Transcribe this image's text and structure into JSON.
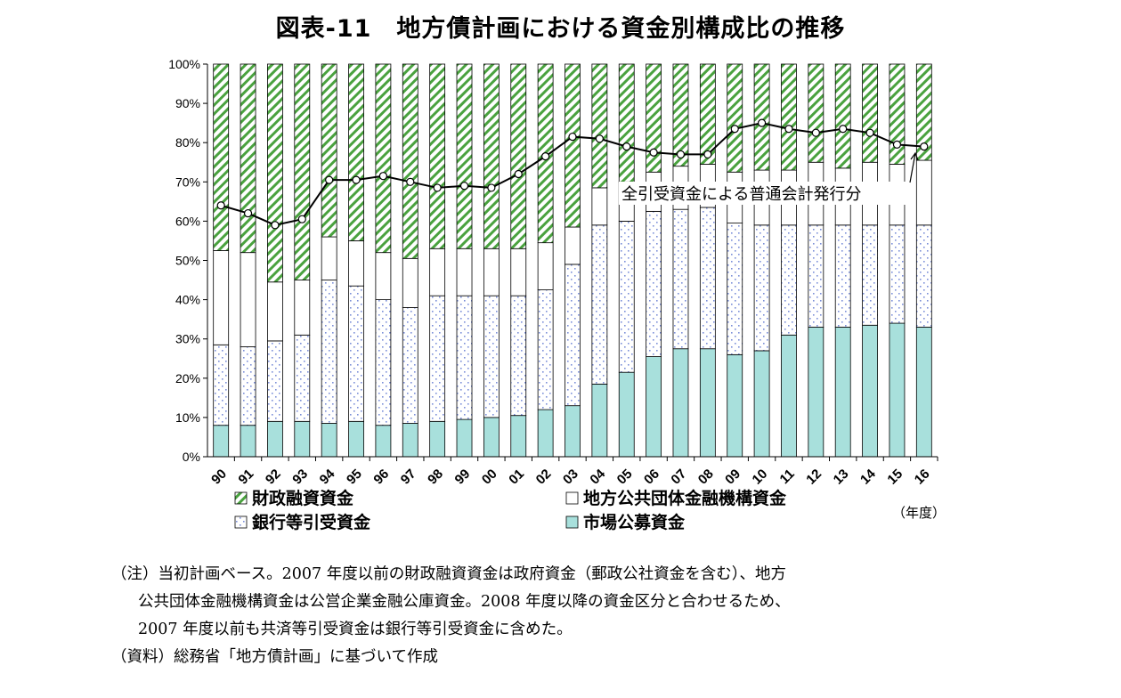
{
  "title": "図表-11　地方債計画における資金別構成比の推移",
  "colors": {
    "market": "#a8e0dc",
    "bank_dots": "#7c8fd8",
    "fiscal_stripe": "#4aa23f",
    "line": "#000000"
  },
  "unit_label": "（年度）",
  "line_annotation": "全引受資金による普通会計発行分",
  "notes": [
    "（注）当初計画ベース。2007 年度以前の財政融資資金は政府資金（郵政公社資金を含む）、地方",
    "公共団体金融機構資金は公営企業金融公庫資金。2008 年度以降の資金区分と合わせるため、",
    "2007 年度以前も共済等引受資金は銀行等引受資金に含めた。",
    "（資料）総務省「地方債計画」に基づいて作成"
  ],
  "chart_data": {
    "type": "bar",
    "stacked": true,
    "categories": [
      "90",
      "91",
      "92",
      "93",
      "94",
      "95",
      "96",
      "97",
      "98",
      "99",
      "00",
      "01",
      "02",
      "03",
      "04",
      "05",
      "06",
      "07",
      "08",
      "09",
      "10",
      "11",
      "12",
      "13",
      "14",
      "15",
      "16"
    ],
    "ylim": [
      0,
      100
    ],
    "yticks": [
      "0%",
      "10%",
      "20%",
      "30%",
      "40%",
      "50%",
      "60%",
      "70%",
      "80%",
      "90%",
      "100%"
    ],
    "series": [
      {
        "name": "市場公募資金",
        "values": [
          8,
          8,
          9,
          9,
          8.5,
          9,
          8,
          8.5,
          9,
          9.5,
          10,
          10.5,
          12,
          13,
          18.5,
          21.5,
          25.5,
          27.5,
          27.5,
          26,
          27,
          31,
          33,
          33,
          33.5,
          34,
          33
        ]
      },
      {
        "name": "銀行等引受資金",
        "values": [
          20.5,
          20,
          20.5,
          22,
          36.5,
          34.5,
          32,
          29.5,
          32,
          31.5,
          31,
          30.5,
          30.5,
          36,
          40.5,
          38.5,
          37,
          35.5,
          36,
          33.5,
          32,
          28,
          26,
          26,
          25.5,
          25,
          26
        ]
      },
      {
        "name": "地方公共団体金融機構資金",
        "values": [
          24,
          24,
          15,
          14,
          11,
          11.5,
          12,
          12.5,
          12,
          12,
          12,
          12,
          12,
          9.5,
          9.5,
          10,
          10,
          11,
          11,
          13,
          14,
          14,
          16,
          14.5,
          16,
          15.5,
          16.5
        ]
      },
      {
        "name": "財政融資資金",
        "values": [
          47.5,
          48,
          55.5,
          55,
          44,
          45,
          48,
          49.5,
          47,
          47,
          47,
          47,
          45.5,
          41.5,
          31.5,
          30,
          27.5,
          26,
          25.5,
          27.5,
          27,
          27,
          25,
          26.5,
          25,
          25.5,
          24.5
        ]
      }
    ],
    "line": {
      "name": "全引受資金による普通会計発行分",
      "values": [
        64,
        62,
        59,
        60.5,
        70.5,
        70.5,
        71.5,
        70,
        68.5,
        69,
        68.5,
        72,
        76.5,
        81.5,
        81,
        79,
        77.5,
        77,
        77,
        83.5,
        85,
        83.5,
        82.5,
        83.5,
        82.5,
        79.5,
        79
      ]
    },
    "legend": [
      {
        "key": "fiscal",
        "label": "財政融資資金"
      },
      {
        "key": "bank",
        "label": "銀行等引受資金"
      },
      {
        "key": "jfm",
        "label": "地方公共団体金融機構資金"
      },
      {
        "key": "market",
        "label": "市場公募資金"
      }
    ],
    "legend_placement": "bottom",
    "grid": false
  }
}
